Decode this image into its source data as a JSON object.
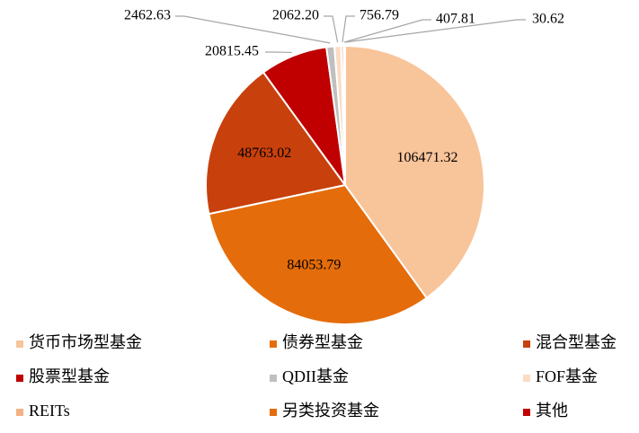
{
  "chart_data": {
    "type": "pie",
    "categories": [
      "货币市场型基金",
      "债券型基金",
      "混合型基金",
      "股票型基金",
      "QDII基金",
      "FOF基金",
      "REITs",
      "另类投资基金",
      "其他"
    ],
    "values": [
      106471.32,
      84053.79,
      48763.02,
      20815.45,
      2462.63,
      2062.2,
      756.79,
      407.81,
      30.62
    ],
    "value_labels": [
      "106471.32",
      "84053.79",
      "48763.02",
      "20815.45",
      "2462.63",
      "2062.20",
      "756.79",
      "407.81",
      "30.62"
    ],
    "colors": [
      "#F8C49A",
      "#E46C0A",
      "#C8400C",
      "#C00000",
      "#BFBFBF",
      "#FBDCC4",
      "#F4B183",
      "#E46C0A",
      "#C00000"
    ]
  }
}
